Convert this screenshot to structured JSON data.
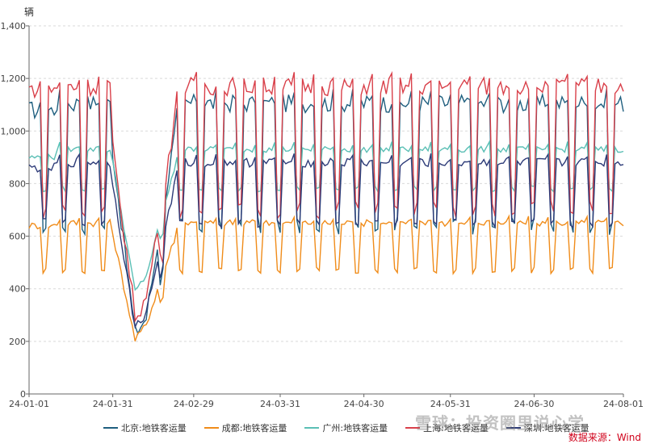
{
  "chart_data": {
    "type": "line",
    "unit_label": "辆",
    "ylim": [
      0,
      1400
    ],
    "y_ticks": [
      "0",
      "200",
      "400",
      "600",
      "800",
      "1,000",
      "1,200",
      "1,400"
    ],
    "x_ticks": [
      "24-01-01",
      "24-01-31",
      "24-02-29",
      "24-03-31",
      "24-04-30",
      "24-05-31",
      "24-06-30",
      "24-08-01"
    ],
    "date_range": [
      "2024-01-01",
      "2024-08-01"
    ],
    "series": [
      {
        "name": "北京:地铁客运量",
        "color": "#1f5f7f",
        "weekday": 1105,
        "weekend": 640,
        "pre_dip": 920,
        "dip_min": 230,
        "start_weekday": 1080
      },
      {
        "name": "成都:地铁客运量",
        "color": "#f08c1a",
        "weekday": 650,
        "weekend": 470,
        "pre_dip": 610,
        "dip_min": 205,
        "start_weekday": 640
      },
      {
        "name": "广州:地铁客运量",
        "color": "#5bbfb5",
        "weekday": 930,
        "weekend": 780,
        "pre_dip": 880,
        "dip_min": 390,
        "start_weekday": 900
      },
      {
        "name": "上海:地铁客运量",
        "color": "#d9404a",
        "weekday": 1170,
        "weekend": 700,
        "pre_dip": 930,
        "dip_min": 300,
        "start_weekday": 1160
      },
      {
        "name": "深圳:地铁客运量",
        "color": "#2d3b78",
        "weekday": 880,
        "weekend": 650,
        "pre_dip": 800,
        "dip_min": 250,
        "start_weekday": 860
      }
    ]
  },
  "source_note": "数据来源：Wind",
  "watermark": "雪球：投资圈里说心学"
}
